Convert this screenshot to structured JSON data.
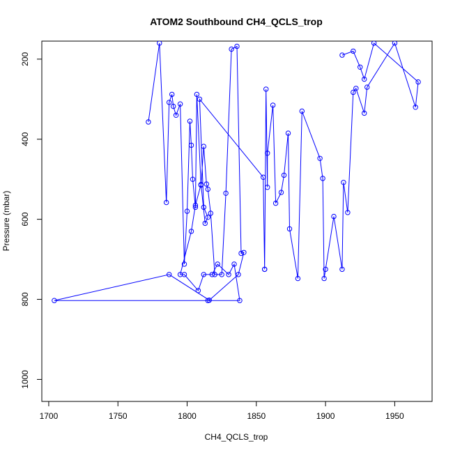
{
  "chart_data": {
    "type": "line",
    "title": "ATOM2 Southbound CH4_QCLS_trop",
    "xlabel": "CH4_QCLS_trop",
    "ylabel": "Pressure (mbar)",
    "xlim": [
      1695,
      1977
    ],
    "ylim": [
      1055,
      155
    ],
    "y_reversed": true,
    "x_ticks": [
      1700,
      1750,
      1800,
      1850,
      1900,
      1950
    ],
    "y_ticks": [
      200,
      400,
      600,
      800,
      1000
    ],
    "grid": false,
    "legend": "none",
    "line_color": "#0000ff",
    "marker": "open-circle",
    "series": [
      {
        "name": "",
        "x": [
          1772,
          1780,
          1785,
          1787,
          1789,
          1790,
          1792,
          1795,
          1798,
          1800,
          1802,
          1803,
          1804,
          1806,
          1807,
          1810,
          1812,
          1814,
          1815,
          1817,
          1820,
          1825,
          1828,
          1832,
          1836,
          1839,
          1841,
          1837,
          1816,
          1787,
          1704,
          1815,
          1838,
          1834,
          1830,
          1822,
          1818,
          1812,
          1808,
          1798,
          1795,
          1803,
          1806,
          1810,
          1813,
          1815,
          1812,
          1809,
          1855,
          1856,
          1856,
          1857,
          1858,
          1858,
          1862,
          1864,
          1868,
          1870,
          1873,
          1874,
          1880,
          1883,
          1896,
          1898,
          1899,
          1900,
          1906,
          1912,
          1913,
          1916,
          1920,
          1922,
          1928,
          1930,
          1950,
          1965,
          1967,
          1935,
          1928,
          1925,
          1920,
          1912
        ],
        "y": [
          357,
          160,
          558,
          308,
          288,
          318,
          340,
          312,
          712,
          580,
          355,
          415,
          500,
          570,
          288,
          515,
          418,
          512,
          525,
          585,
          738,
          738,
          535,
          175,
          168,
          685,
          683,
          738,
          802,
          738,
          803,
          803,
          803,
          712,
          738,
          712,
          738,
          738,
          778,
          738,
          738,
          630,
          565,
          513,
          610,
          595,
          570,
          300,
          495,
          725,
          725,
          275,
          520,
          435,
          315,
          560,
          533,
          490,
          385,
          624,
          748,
          330,
          448,
          498,
          748,
          725,
          593,
          725,
          508,
          583,
          283,
          273,
          335,
          270,
          160,
          320,
          257,
          160,
          250,
          220,
          180,
          190
        ]
      }
    ]
  }
}
